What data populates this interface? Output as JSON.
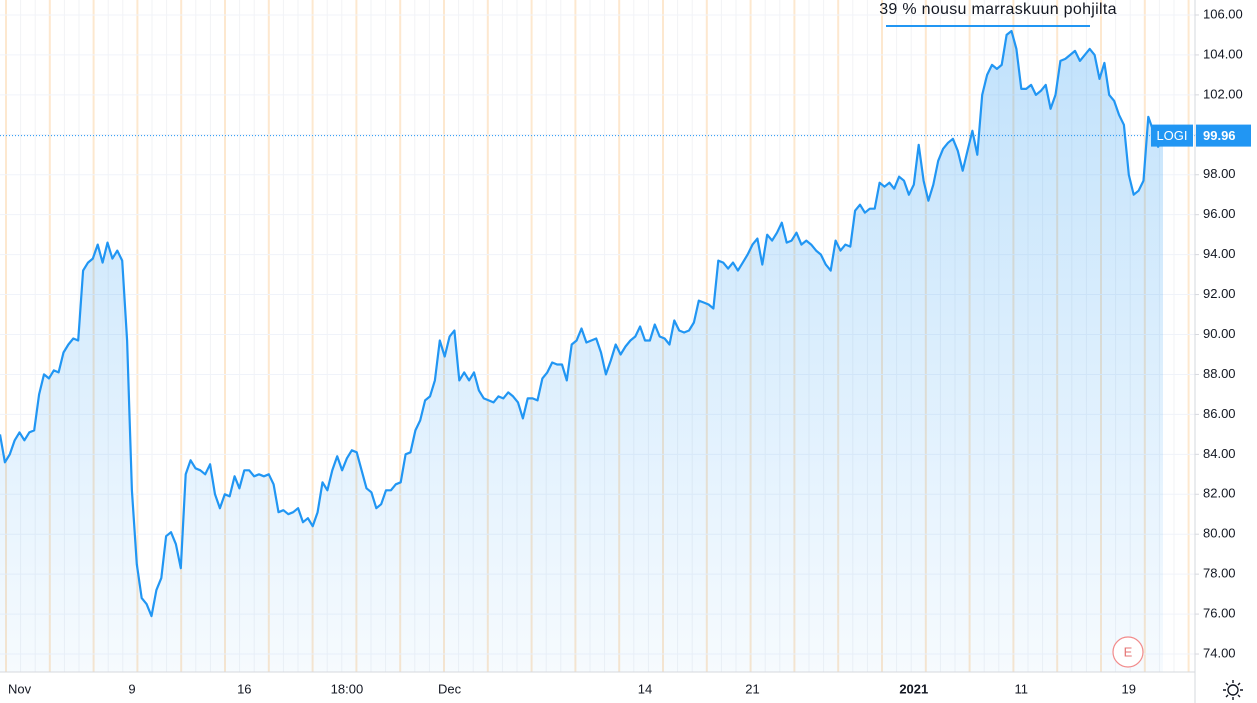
{
  "chart_data": {
    "type": "line",
    "fill": true,
    "annotations": [
      {
        "text": "39 % nousu marraskuun pohjilta"
      }
    ],
    "events": [
      {
        "label": "E"
      }
    ],
    "categories": [
      null,
      null,
      null,
      null,
      "Nov",
      null,
      null,
      null,
      null,
      null,
      null,
      null,
      null,
      null,
      null,
      null,
      null,
      null,
      null,
      null,
      null,
      null,
      null,
      null,
      null,
      null,
      null,
      "9",
      null,
      null,
      null,
      null,
      null,
      null,
      null,
      null,
      null,
      null,
      null,
      null,
      null,
      null,
      null,
      null,
      null,
      null,
      null,
      null,
      null,
      null,
      "16",
      null,
      null,
      null,
      null,
      null,
      null,
      null,
      null,
      null,
      null,
      null,
      null,
      null,
      null,
      null,
      null,
      null,
      null,
      null,
      null,
      "18:00",
      null,
      null,
      null,
      null,
      null,
      null,
      null,
      null,
      null,
      null,
      null,
      null,
      null,
      null,
      null,
      null,
      null,
      null,
      null,
      null,
      "Dec",
      null,
      null,
      null,
      null,
      null,
      null,
      null,
      null,
      null,
      null,
      null,
      null,
      null,
      null,
      null,
      null,
      null,
      null,
      null,
      null,
      null,
      null,
      null,
      null,
      null,
      null,
      null,
      null,
      null,
      null,
      null,
      null,
      null,
      null,
      null,
      null,
      null,
      null,
      null,
      "14",
      null,
      null,
      null,
      null,
      null,
      null,
      null,
      null,
      null,
      null,
      null,
      null,
      null,
      null,
      null,
      null,
      null,
      null,
      null,
      null,
      null,
      "21",
      null,
      null,
      null,
      null,
      null,
      null,
      null,
      null,
      null,
      null,
      null,
      null,
      null,
      null,
      null,
      null,
      null,
      null,
      null,
      null,
      null,
      null,
      null,
      null,
      null,
      null,
      null,
      null,
      null,
      null,
      null,
      null,
      "2021",
      null,
      null,
      null,
      null,
      null,
      null,
      null,
      null,
      null,
      null,
      null,
      null,
      null,
      null,
      null,
      null,
      null,
      null,
      null,
      null,
      null,
      "11",
      null,
      null,
      null,
      null,
      null,
      null,
      null,
      null,
      null,
      null,
      null,
      null,
      null,
      null,
      null,
      null,
      null,
      null,
      null,
      null,
      null,
      "19",
      null,
      null,
      null,
      null,
      null,
      null,
      null
    ],
    "series": [
      {
        "name": "LOGI",
        "color": "#2196f3",
        "values": [
          85.0,
          83.6,
          84.0,
          84.7,
          85.1,
          84.7,
          85.1,
          85.2,
          87.0,
          88.0,
          87.8,
          88.2,
          88.1,
          89.1,
          89.5,
          89.8,
          89.7,
          93.2,
          93.6,
          93.8,
          94.5,
          93.6,
          94.6,
          93.8,
          94.2,
          93.7,
          89.7,
          82.2,
          78.5,
          76.8,
          76.5,
          75.9,
          77.2,
          77.8,
          79.9,
          80.1,
          79.5,
          78.3,
          83.0,
          83.7,
          83.3,
          83.2,
          83.0,
          83.5,
          82.0,
          81.3,
          82.0,
          81.9,
          82.9,
          82.3,
          83.2,
          83.2,
          82.9,
          83.0,
          82.9,
          83.0,
          82.5,
          81.1,
          81.2,
          81.0,
          81.1,
          81.3,
          80.6,
          80.8,
          80.4,
          81.1,
          82.6,
          82.2,
          83.2,
          83.9,
          83.2,
          83.8,
          84.2,
          84.1,
          83.2,
          82.3,
          82.1,
          81.3,
          81.5,
          82.2,
          82.2,
          82.5,
          82.6,
          84.0,
          84.1,
          85.2,
          85.7,
          86.7,
          86.9,
          87.7,
          89.7,
          88.9,
          89.9,
          90.2,
          87.7,
          88.1,
          87.7,
          88.1,
          87.2,
          86.8,
          86.7,
          86.6,
          86.9,
          86.8,
          87.1,
          86.9,
          86.6,
          85.8,
          86.8,
          86.8,
          86.7,
          87.8,
          88.1,
          88.6,
          88.5,
          88.5,
          87.7,
          89.5,
          89.7,
          90.3,
          89.6,
          89.7,
          89.8,
          89.1,
          88.0,
          88.7,
          89.5,
          89.0,
          89.4,
          89.7,
          89.9,
          90.4,
          89.7,
          89.7,
          90.5,
          89.9,
          89.8,
          89.5,
          90.7,
          90.2,
          90.1,
          90.2,
          90.6,
          91.7,
          91.6,
          91.5,
          91.3,
          93.7,
          93.6,
          93.3,
          93.6,
          93.2,
          93.6,
          94.0,
          94.5,
          94.8,
          93.5,
          95.0,
          94.7,
          95.1,
          95.6,
          94.6,
          94.7,
          95.1,
          94.5,
          94.7,
          94.5,
          94.2,
          94.0,
          93.5,
          93.2,
          94.7,
          94.2,
          94.5,
          94.4,
          96.2,
          96.5,
          96.1,
          96.3,
          96.3,
          97.6,
          97.4,
          97.6,
          97.3,
          97.9,
          97.7,
          97.0,
          97.5,
          99.5,
          97.7,
          96.7,
          97.5,
          98.7,
          99.3,
          99.6,
          99.8,
          99.2,
          98.2,
          99.2,
          100.2,
          99.0,
          102.0,
          103.0,
          103.5,
          103.3,
          103.5,
          105.0,
          105.2,
          104.3,
          102.3,
          102.3,
          102.5,
          102.0,
          102.2,
          102.5,
          101.3,
          102.0,
          103.7,
          103.8,
          104.0,
          104.2,
          103.7,
          104.0,
          104.3,
          104.0,
          102.8,
          103.6,
          102.0,
          101.7,
          101.0,
          100.5,
          98.0,
          97.0,
          97.2,
          97.7,
          100.9,
          100.2,
          99.4,
          99.96
        ]
      }
    ],
    "ylim": [
      73.1,
      106.75
    ],
    "yticks": [
      {
        "value": 74,
        "label": "74.00"
      },
      {
        "value": 76,
        "label": "76.00"
      },
      {
        "value": 78,
        "label": "78.00"
      },
      {
        "value": 80,
        "label": "80.00"
      },
      {
        "value": 82,
        "label": "82.00"
      },
      {
        "value": 84,
        "label": "84.00"
      },
      {
        "value": 86,
        "label": "86.00"
      },
      {
        "value": 88,
        "label": "88.00"
      },
      {
        "value": 90,
        "label": "90.00"
      },
      {
        "value": 92,
        "label": "92.00"
      },
      {
        "value": 94,
        "label": "94.00"
      },
      {
        "value": 96,
        "label": "96.00"
      },
      {
        "value": 98,
        "label": "98.00"
      },
      {
        "value": 100,
        "label": "100.00"
      },
      {
        "value": 102,
        "label": "102.00"
      },
      {
        "value": 104,
        "label": "104.00"
      },
      {
        "value": 106,
        "label": "106.00"
      }
    ],
    "grid": true
  }
}
